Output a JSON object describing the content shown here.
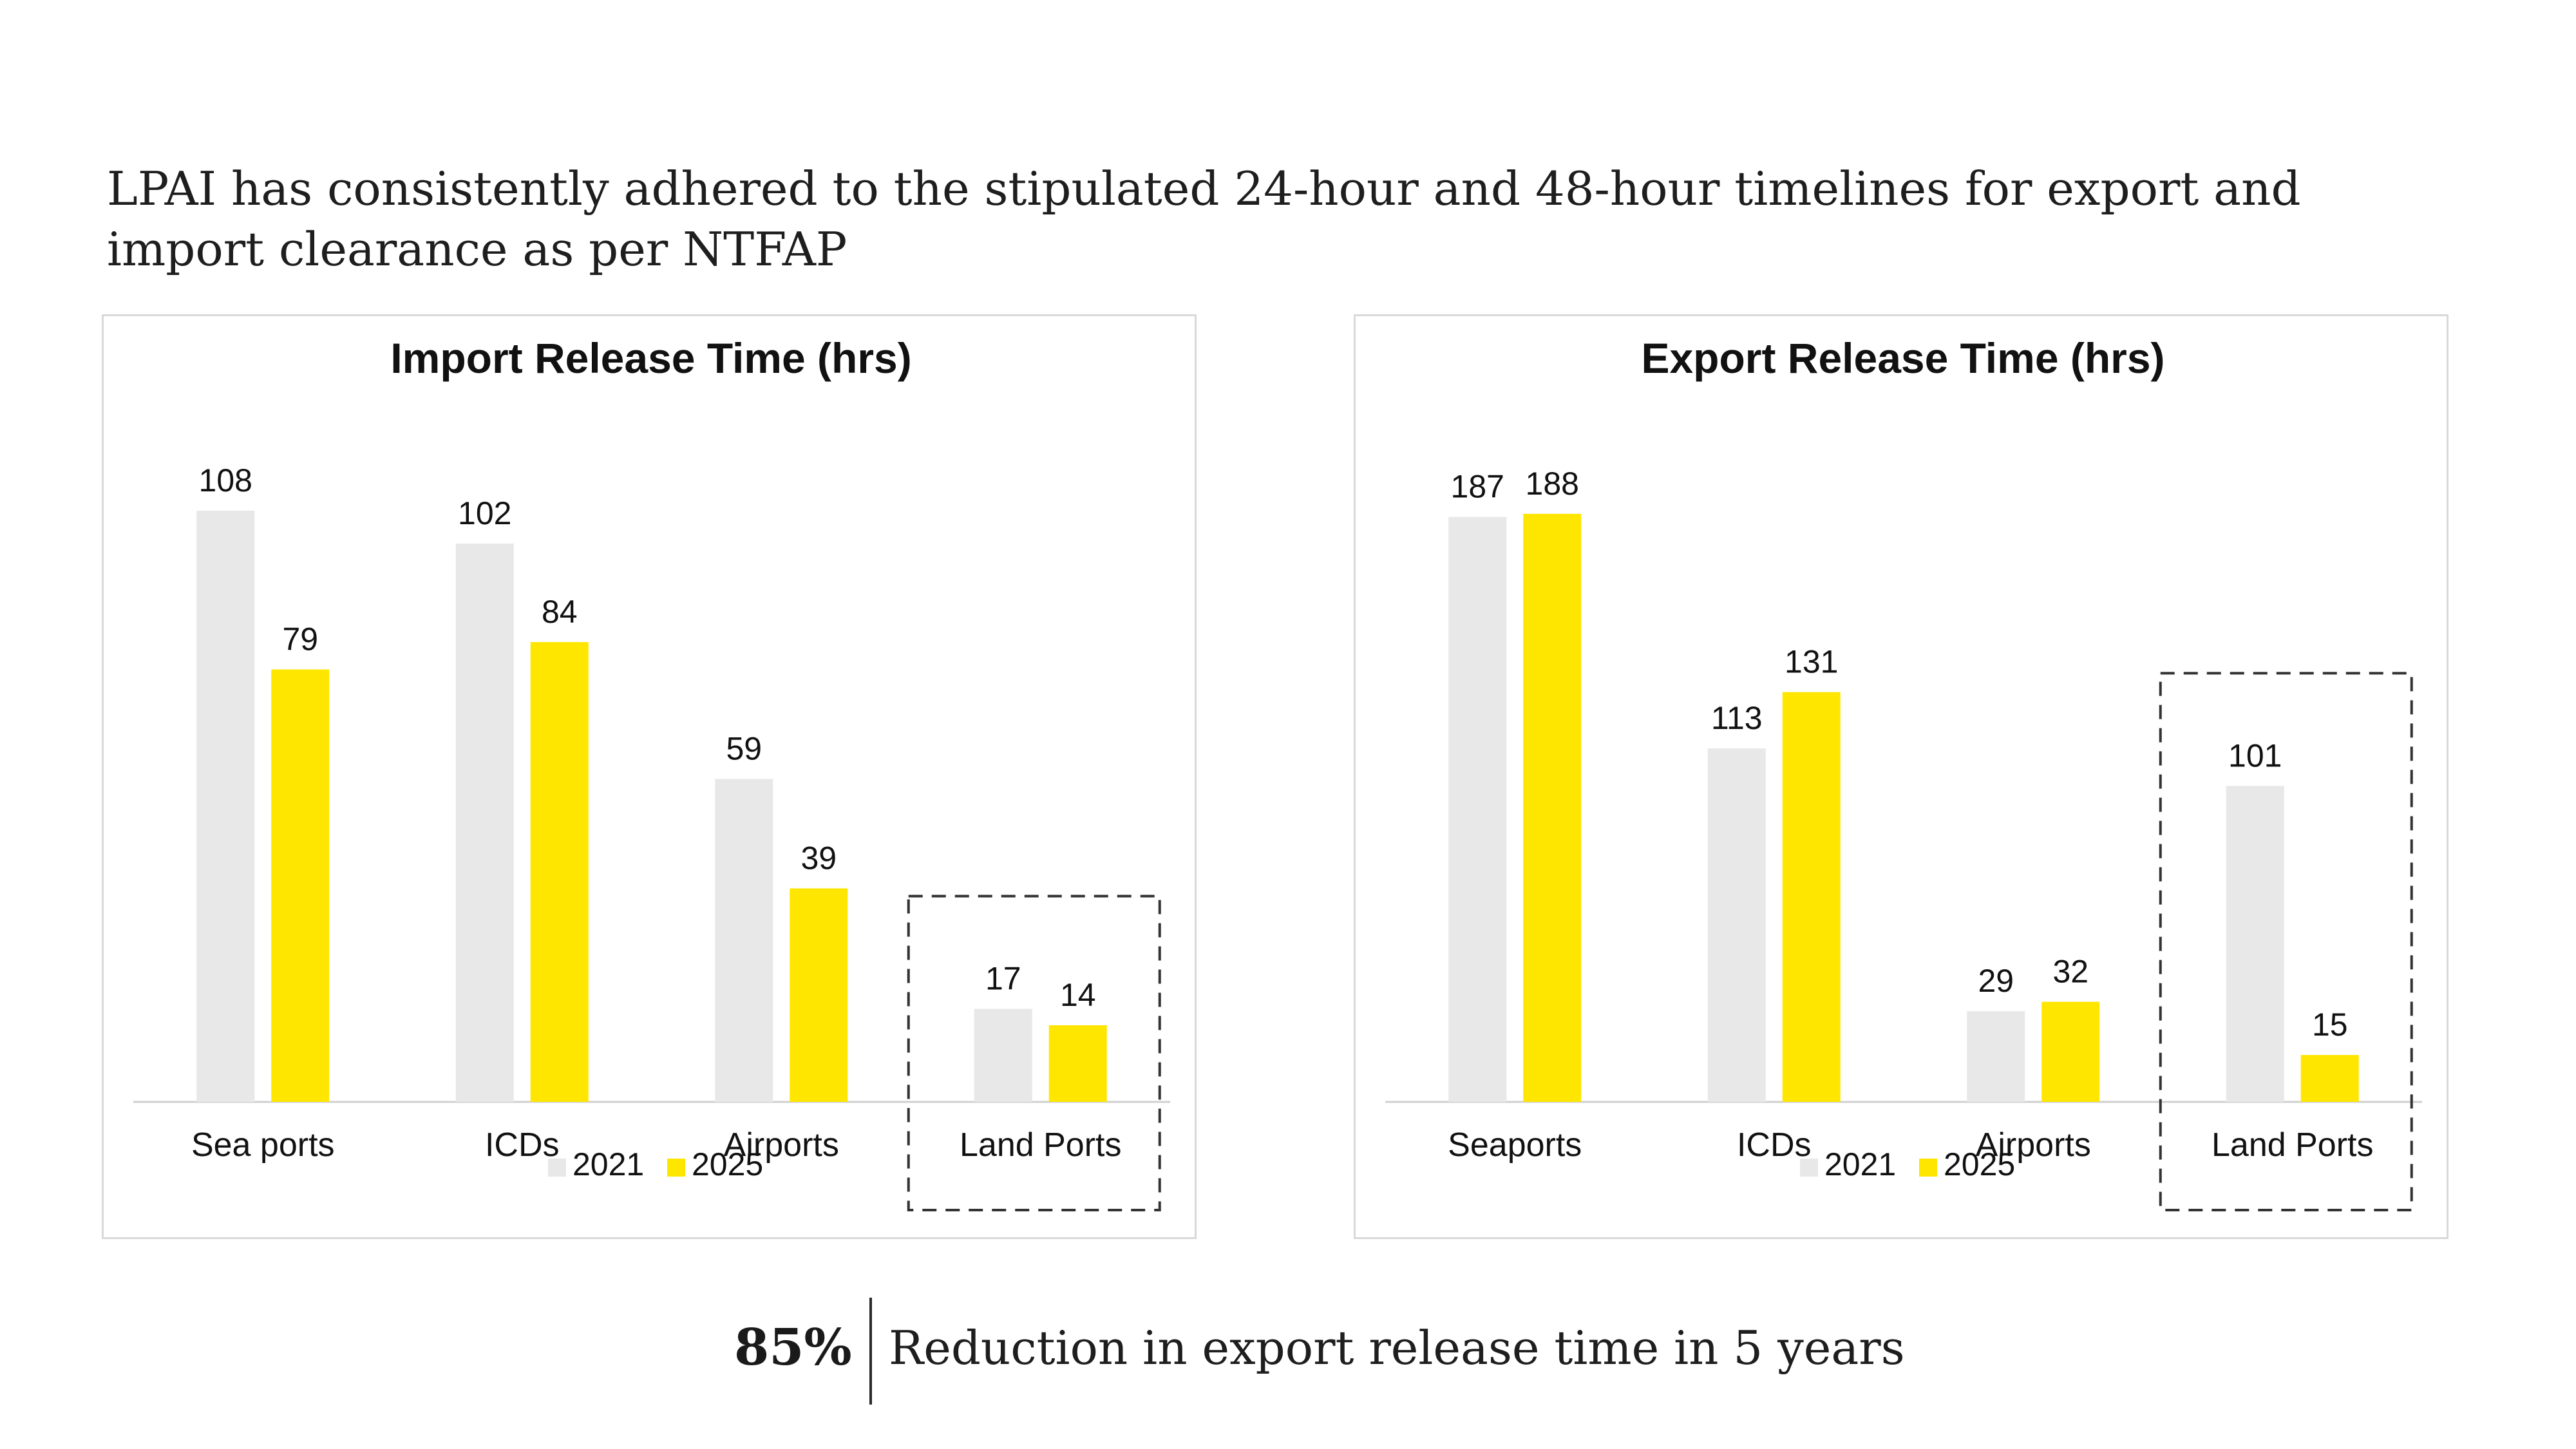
{
  "headline": "LPAI has consistently adhered to the stipulated 24-hour and 48-hour timelines for export and import clearance as per NTFAP",
  "colors": {
    "series_2021": "#e8e8e8",
    "series_2025": "#ffe600",
    "highlight_border": "#333333",
    "panel_border": "#d9d9d9",
    "axis": "#d0d0d0"
  },
  "chart_data": [
    {
      "type": "bar",
      "title": "Import Release Time (hrs)",
      "categories": [
        "Sea ports",
        "ICDs",
        "Airports",
        "Land Ports"
      ],
      "series": [
        {
          "name": "2021",
          "values": [
            108,
            102,
            59,
            17
          ]
        },
        {
          "name": "2025",
          "values": [
            79,
            84,
            39,
            14
          ]
        }
      ],
      "ylim": [
        0,
        120
      ],
      "grid": false,
      "legend": "bottom",
      "highlight_category": "Land Ports"
    },
    {
      "type": "bar",
      "title": "Export Release Time (hrs)",
      "categories": [
        "Seaports",
        "ICDs",
        "Airports",
        "Land Ports"
      ],
      "series": [
        {
          "name": "2021",
          "values": [
            187,
            113,
            29,
            101
          ]
        },
        {
          "name": "2025",
          "values": [
            188,
            131,
            32,
            15
          ]
        }
      ],
      "ylim": [
        0,
        210
      ],
      "grid": false,
      "legend": "bottom",
      "highlight_category": "Land Ports"
    }
  ],
  "footer": {
    "stat_value": "85%",
    "stat_text": "Reduction in export release time in 5 years"
  }
}
